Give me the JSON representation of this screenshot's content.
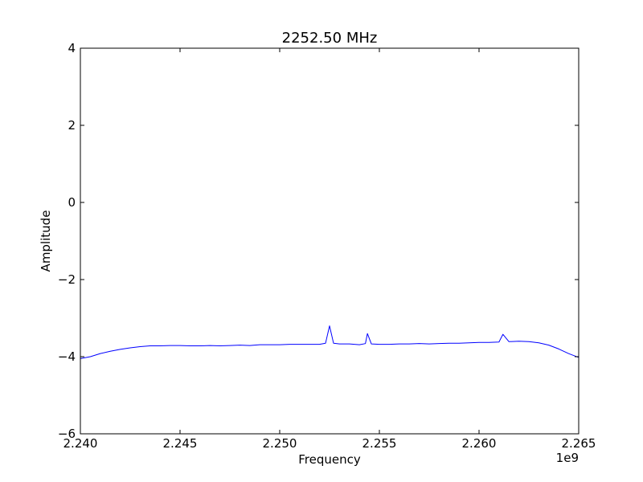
{
  "chart_data": {
    "type": "line",
    "title": "2252.50 MHz",
    "xlabel": "Frequency",
    "ylabel": "Amplitude",
    "x_offset_label": "1e9",
    "xlim": [
      2.24,
      2.265
    ],
    "ylim": [
      -6,
      4
    ],
    "x_ticks": [
      2.24,
      2.245,
      2.25,
      2.255,
      2.26,
      2.265
    ],
    "x_tick_labels": [
      "2.240",
      "2.245",
      "2.250",
      "2.255",
      "2.260",
      "2.265"
    ],
    "y_ticks": [
      4,
      2,
      0,
      -2,
      -4,
      -6
    ],
    "y_tick_labels": [
      "4",
      "2",
      "0",
      "−2",
      "−4",
      "−6"
    ],
    "grid": false,
    "series": [
      {
        "color": "#0000ff",
        "x": [
          2.24,
          2.2405,
          2.241,
          2.2415,
          2.242,
          2.2425,
          2.243,
          2.2435,
          2.244,
          2.2445,
          2.245,
          2.2455,
          2.246,
          2.2465,
          2.247,
          2.2475,
          2.248,
          2.2485,
          2.249,
          2.2495,
          2.25,
          2.2505,
          2.251,
          2.2515,
          2.252,
          2.2523,
          2.2525,
          2.2527,
          2.253,
          2.2535,
          2.254,
          2.2543,
          2.2544,
          2.2546,
          2.255,
          2.2555,
          2.256,
          2.2565,
          2.257,
          2.2575,
          2.258,
          2.2585,
          2.259,
          2.2595,
          2.26,
          2.2605,
          2.261,
          2.2612,
          2.2615,
          2.262,
          2.2625,
          2.263,
          2.2635,
          2.264,
          2.2645,
          2.265
        ],
        "y": [
          -4.05,
          -4.0,
          -3.92,
          -3.86,
          -3.81,
          -3.77,
          -3.74,
          -3.72,
          -3.72,
          -3.71,
          -3.71,
          -3.72,
          -3.72,
          -3.71,
          -3.72,
          -3.71,
          -3.7,
          -3.71,
          -3.69,
          -3.69,
          -3.69,
          -3.68,
          -3.68,
          -3.68,
          -3.68,
          -3.65,
          -3.2,
          -3.65,
          -3.67,
          -3.67,
          -3.69,
          -3.66,
          -3.4,
          -3.67,
          -3.68,
          -3.68,
          -3.67,
          -3.67,
          -3.66,
          -3.67,
          -3.66,
          -3.65,
          -3.65,
          -3.64,
          -3.63,
          -3.63,
          -3.62,
          -3.42,
          -3.61,
          -3.6,
          -3.61,
          -3.64,
          -3.7,
          -3.8,
          -3.92,
          -4.02
        ]
      }
    ]
  }
}
